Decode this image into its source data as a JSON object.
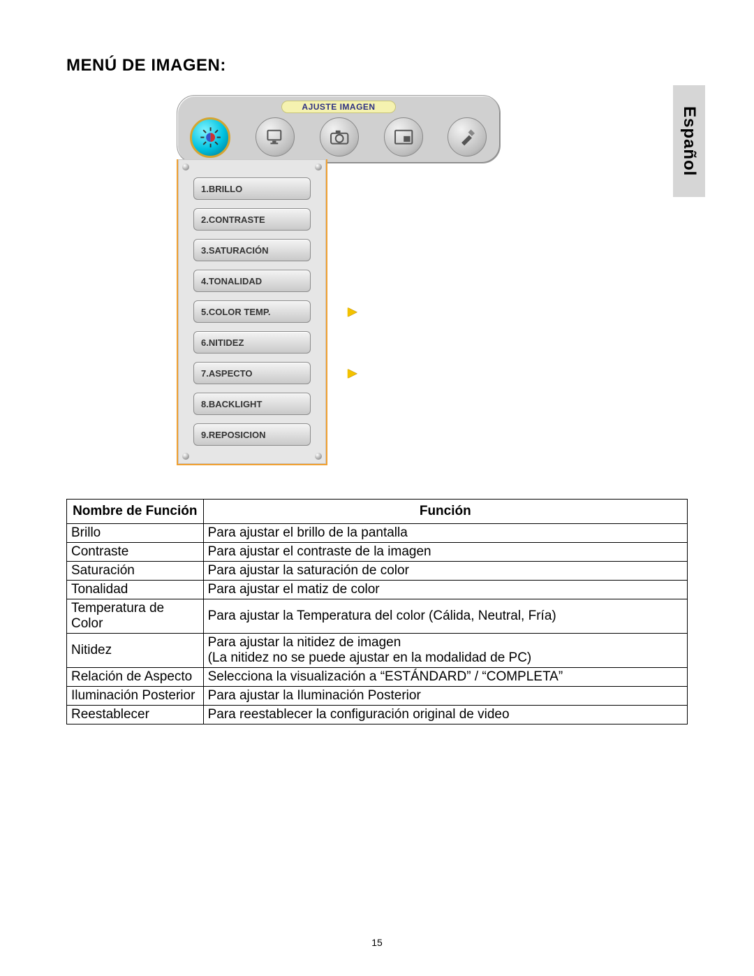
{
  "page": {
    "title": "MENÚ DE IMAGEN:",
    "number": "15",
    "side_tab": "Español"
  },
  "osd": {
    "header_label": "AJUSTE IMAGEN",
    "colors": {
      "panel_bg": "#e6e6e6",
      "panel_border": "#f0a030",
      "button_grad_top": "#f4f4f4",
      "button_grad_bottom": "#c9c9c9",
      "selected_icon_bg": "#00c2e0",
      "selected_icon_ring": "#d4a530",
      "label_bg": "#f5f2b0",
      "label_text": "#2c2f82",
      "arrow": "#f3c200"
    },
    "top_icons": [
      {
        "name": "image-adjust",
        "selected": true
      },
      {
        "name": "pc-adjust",
        "selected": false
      },
      {
        "name": "camera-adjust",
        "selected": false
      },
      {
        "name": "pip-adjust",
        "selected": false
      },
      {
        "name": "tools-adjust",
        "selected": false
      }
    ],
    "items": [
      {
        "label": "1.BRILLO",
        "has_arrow": false
      },
      {
        "label": "2.CONTRASTE",
        "has_arrow": false
      },
      {
        "label": "3.SATURACIÓN",
        "has_arrow": false
      },
      {
        "label": "4.TONALIDAD",
        "has_arrow": false
      },
      {
        "label": "5.COLOR TEMP.",
        "has_arrow": true
      },
      {
        "label": "6.NITIDEZ",
        "has_arrow": false
      },
      {
        "label": "7.ASPECTO",
        "has_arrow": true
      },
      {
        "label": "8.BACKLIGHT",
        "has_arrow": false
      },
      {
        "label": "9.REPOSICION",
        "has_arrow": false
      }
    ]
  },
  "table": {
    "header_name": "Nombre de Función",
    "header_func": "Función",
    "rows": [
      {
        "name": "Brillo",
        "func": "Para ajustar el brillo de la pantalla"
      },
      {
        "name": "Contraste",
        "func": "Para ajustar el contraste de la imagen"
      },
      {
        "name": "Saturación",
        "func": "Para ajustar la saturación de color"
      },
      {
        "name": "Tonalidad",
        "func": "Para ajustar el matiz de color"
      },
      {
        "name": "Temperatura de Color",
        "func": "Para ajustar la Temperatura del color (Cálida, Neutral, Fría)"
      },
      {
        "name": "Nitidez",
        "func": "Para ajustar la nitidez de imagen\n(La nitidez no se puede ajustar en la modalidad de PC)"
      },
      {
        "name": "Relación de Aspecto",
        "func": "Selecciona la visualización a “ESTÁNDARD” / “COMPLETA”"
      },
      {
        "name": "Iluminación Posterior",
        "func": "Para ajustar la Iluminación Posterior"
      },
      {
        "name": "Reestablecer",
        "func": "Para reestablecer la configuración original de video"
      }
    ]
  }
}
